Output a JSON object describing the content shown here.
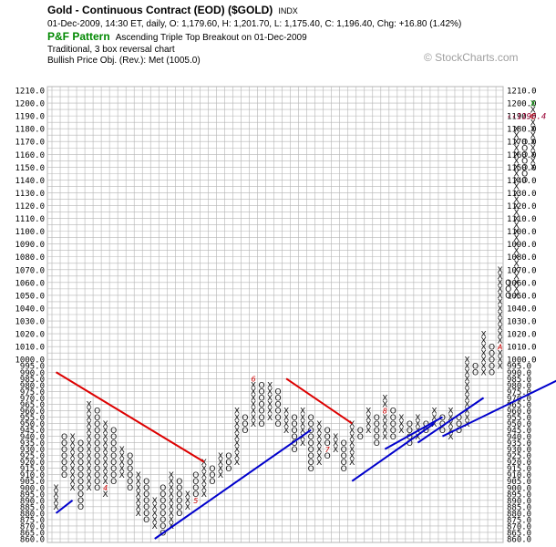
{
  "header": {
    "title": "Gold - Continuous Contract (EOD) ($GOLD)",
    "symbol_tag": "INDX",
    "quote_line": "01-Dec-2009, 14:30 ET, daily, O: 1,179.60, H: 1,201.70, L: 1,175.40, C: 1,196.40, Chg: +16.80 (1.42%)",
    "pattern_label": "P&F Pattern",
    "pattern_text": "Ascending Triple Top Breakout on 01-Dec-2009",
    "method_text": "Traditional, 3 box reversal chart",
    "objective_text": "Bullish Price Obj. (Rev.): Met (1005.0)"
  },
  "watermark": "© StockCharts.com",
  "colors": {
    "grid": "#b4b4b4",
    "x_mark": "#111111",
    "o_mark": "#111111",
    "resistance_line": "#dd0000",
    "support_line": "#0000cc",
    "month_marker": "#cc0000",
    "latest_mark": "#009900",
    "current_price": "#990033"
  },
  "chart_data": {
    "type": "point-and-figure",
    "box_size": 5,
    "reversal_boxes": 3,
    "y_min": 860,
    "y_max": 1210,
    "y_ticks": [
      "1210.0",
      "1200.0",
      "1190.0",
      "1180.0",
      "1170.0",
      "1160.0",
      "1150.0",
      "1140.0",
      "1130.0",
      "1120.0",
      "1110.0",
      "1100.0",
      "1090.0",
      "1080.0",
      "1070.0",
      "1060.0",
      "1050.0",
      "1040.0",
      "1030.0",
      "1020.0",
      "1010.0",
      "1000.0",
      "995.0",
      "990.0",
      "985.0",
      "980.0",
      "975.0",
      "970.0",
      "965.0",
      "960.0",
      "955.0",
      "950.0",
      "945.0",
      "940.0",
      "935.0",
      "930.0",
      "925.0",
      "920.0",
      "915.0",
      "910.0",
      "905.0",
      "900.0",
      "895.0",
      "890.0",
      "885.0",
      "880.0",
      "875.0",
      "870.0",
      "865.0",
      "860.0"
    ],
    "current_price_label": "1196.4",
    "columns": [
      {
        "type": "X",
        "low": 885,
        "high": 900,
        "marks": {}
      },
      {
        "type": "O",
        "low": 910,
        "high": 940,
        "marks": {}
      },
      {
        "type": "X",
        "low": 900,
        "high": 940,
        "marks": {}
      },
      {
        "type": "O",
        "low": 885,
        "high": 935,
        "marks": {}
      },
      {
        "type": "X",
        "low": 900,
        "high": 965,
        "marks": {}
      },
      {
        "type": "O",
        "low": 900,
        "high": 960,
        "marks": {}
      },
      {
        "type": "X",
        "low": 895,
        "high": 950,
        "marks": {
          "900": "4"
        }
      },
      {
        "type": "O",
        "low": 905,
        "high": 945,
        "marks": {}
      },
      {
        "type": "X",
        "low": 910,
        "high": 930,
        "marks": {}
      },
      {
        "type": "O",
        "low": 900,
        "high": 925,
        "marks": {}
      },
      {
        "type": "X",
        "low": 880,
        "high": 910,
        "marks": {}
      },
      {
        "type": "O",
        "low": 875,
        "high": 905,
        "marks": {}
      },
      {
        "type": "X",
        "low": 870,
        "high": 890,
        "marks": {}
      },
      {
        "type": "O",
        "low": 865,
        "high": 900,
        "marks": {}
      },
      {
        "type": "X",
        "low": 870,
        "high": 910,
        "marks": {}
      },
      {
        "type": "O",
        "low": 880,
        "high": 905,
        "marks": {}
      },
      {
        "type": "X",
        "low": 885,
        "high": 895,
        "marks": {}
      },
      {
        "type": "O",
        "low": 890,
        "high": 910,
        "marks": {
          "890": "5"
        }
      },
      {
        "type": "X",
        "low": 895,
        "high": 920,
        "marks": {}
      },
      {
        "type": "O",
        "low": 905,
        "high": 915,
        "marks": {}
      },
      {
        "type": "X",
        "low": 910,
        "high": 925,
        "marks": {}
      },
      {
        "type": "O",
        "low": 915,
        "high": 925,
        "marks": {}
      },
      {
        "type": "X",
        "low": 920,
        "high": 960,
        "marks": {}
      },
      {
        "type": "O",
        "low": 945,
        "high": 955,
        "marks": {}
      },
      {
        "type": "X",
        "low": 950,
        "high": 985,
        "marks": {
          "985": "6"
        }
      },
      {
        "type": "O",
        "low": 950,
        "high": 980,
        "marks": {}
      },
      {
        "type": "X",
        "low": 955,
        "high": 980,
        "marks": {}
      },
      {
        "type": "O",
        "low": 950,
        "high": 975,
        "marks": {}
      },
      {
        "type": "X",
        "low": 945,
        "high": 960,
        "marks": {}
      },
      {
        "type": "O",
        "low": 930,
        "high": 955,
        "marks": {}
      },
      {
        "type": "X",
        "low": 935,
        "high": 960,
        "marks": {}
      },
      {
        "type": "O",
        "low": 915,
        "high": 955,
        "marks": {}
      },
      {
        "type": "X",
        "low": 920,
        "high": 950,
        "marks": {}
      },
      {
        "type": "O",
        "low": 925,
        "high": 945,
        "marks": {
          "930": "7"
        }
      },
      {
        "type": "X",
        "low": 930,
        "high": 940,
        "marks": {}
      },
      {
        "type": "O",
        "low": 915,
        "high": 935,
        "marks": {}
      },
      {
        "type": "X",
        "low": 920,
        "high": 950,
        "marks": {}
      },
      {
        "type": "O",
        "low": 940,
        "high": 945,
        "marks": {}
      },
      {
        "type": "X",
        "low": 945,
        "high": 960,
        "marks": {}
      },
      {
        "type": "O",
        "low": 935,
        "high": 955,
        "marks": {}
      },
      {
        "type": "X",
        "low": 940,
        "high": 970,
        "marks": {
          "960": "8"
        }
      },
      {
        "type": "O",
        "low": 940,
        "high": 960,
        "marks": {}
      },
      {
        "type": "X",
        "low": 945,
        "high": 955,
        "marks": {}
      },
      {
        "type": "O",
        "low": 935,
        "high": 950,
        "marks": {}
      },
      {
        "type": "X",
        "low": 940,
        "high": 955,
        "marks": {}
      },
      {
        "type": "O",
        "low": 945,
        "high": 950,
        "marks": {}
      },
      {
        "type": "X",
        "low": 950,
        "high": 960,
        "marks": {}
      },
      {
        "type": "O",
        "low": 945,
        "high": 955,
        "marks": {
          "935": "9"
        }
      },
      {
        "type": "X",
        "low": 940,
        "high": 960,
        "marks": {}
      },
      {
        "type": "O",
        "low": 945,
        "high": 955,
        "marks": {}
      },
      {
        "type": "X",
        "low": 950,
        "high": 1000,
        "marks": {}
      },
      {
        "type": "O",
        "low": 990,
        "high": 995,
        "marks": {}
      },
      {
        "type": "X",
        "low": 990,
        "high": 1020,
        "marks": {}
      },
      {
        "type": "O",
        "low": 990,
        "high": 1010,
        "marks": {}
      },
      {
        "type": "X",
        "low": 995,
        "high": 1070,
        "marks": {
          "1010": "A"
        }
      },
      {
        "type": "O",
        "low": 1050,
        "high": 1060,
        "marks": {}
      },
      {
        "type": "X",
        "low": 1050,
        "high": 1180,
        "marks": {
          "1040": "B"
        }
      },
      {
        "type": "O",
        "low": 1140,
        "high": 1170,
        "marks": {}
      },
      {
        "type": "X",
        "low": 1150,
        "high": 1200,
        "marks": {
          "1190": "C"
        }
      }
    ],
    "red_lines": [
      {
        "start_col": 0,
        "start_price": 990,
        "end_col": 18,
        "end_price": 920
      },
      {
        "start_col": 28,
        "start_price": 985,
        "end_col": 36,
        "end_price": 950
      }
    ],
    "blue_lines": [
      {
        "start_col": 0,
        "start_price": 880,
        "end_col": 2,
        "end_price": 890
      },
      {
        "start_col": 12,
        "start_price": 860,
        "end_col": 31,
        "end_price": 945
      },
      {
        "start_col": 36,
        "start_price": 905,
        "end_col": 46,
        "end_price": 950
      },
      {
        "start_col": 40,
        "start_price": 930,
        "end_col": 47,
        "end_price": 955
      },
      {
        "start_col": 44,
        "start_price": 935,
        "end_col": 52,
        "end_price": 970
      },
      {
        "start_col": 47,
        "start_price": 940,
        "end_col": 63,
        "end_price": 990
      }
    ]
  }
}
